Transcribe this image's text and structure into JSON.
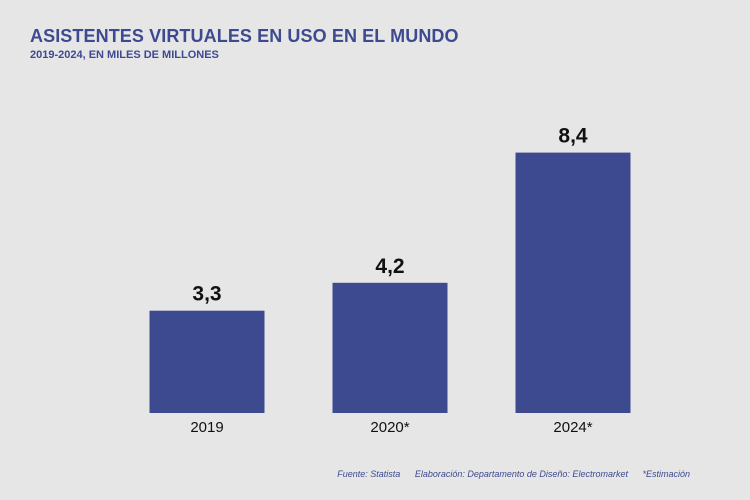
{
  "header": {
    "title": "ASISTENTES VIRTUALES EN USO EN EL MUNDO",
    "subtitle": "2019-2024, EN MILES DE MILLONES"
  },
  "footer": {
    "source": "Fuente: Statista",
    "credits": "Elaboración: Departamento de Diseño: Electromarket",
    "note": "*Estimación"
  },
  "colors": {
    "bar": "#3d4a8f",
    "text": "#3d4a8f",
    "background": "#e6e6e6"
  },
  "chart_data": {
    "type": "bar",
    "title": "ASISTENTES VIRTUALES EN USO EN EL MUNDO",
    "subtitle": "2019-2024, EN MILES DE MILLONES",
    "categories": [
      "2019",
      "2020*",
      "2024*"
    ],
    "values": [
      3.3,
      4.2,
      8.4
    ],
    "value_labels": [
      "3,3",
      "4,2",
      "8,4"
    ],
    "xlabel": "",
    "ylabel": "",
    "ylim": [
      0,
      10
    ],
    "grid": false
  }
}
